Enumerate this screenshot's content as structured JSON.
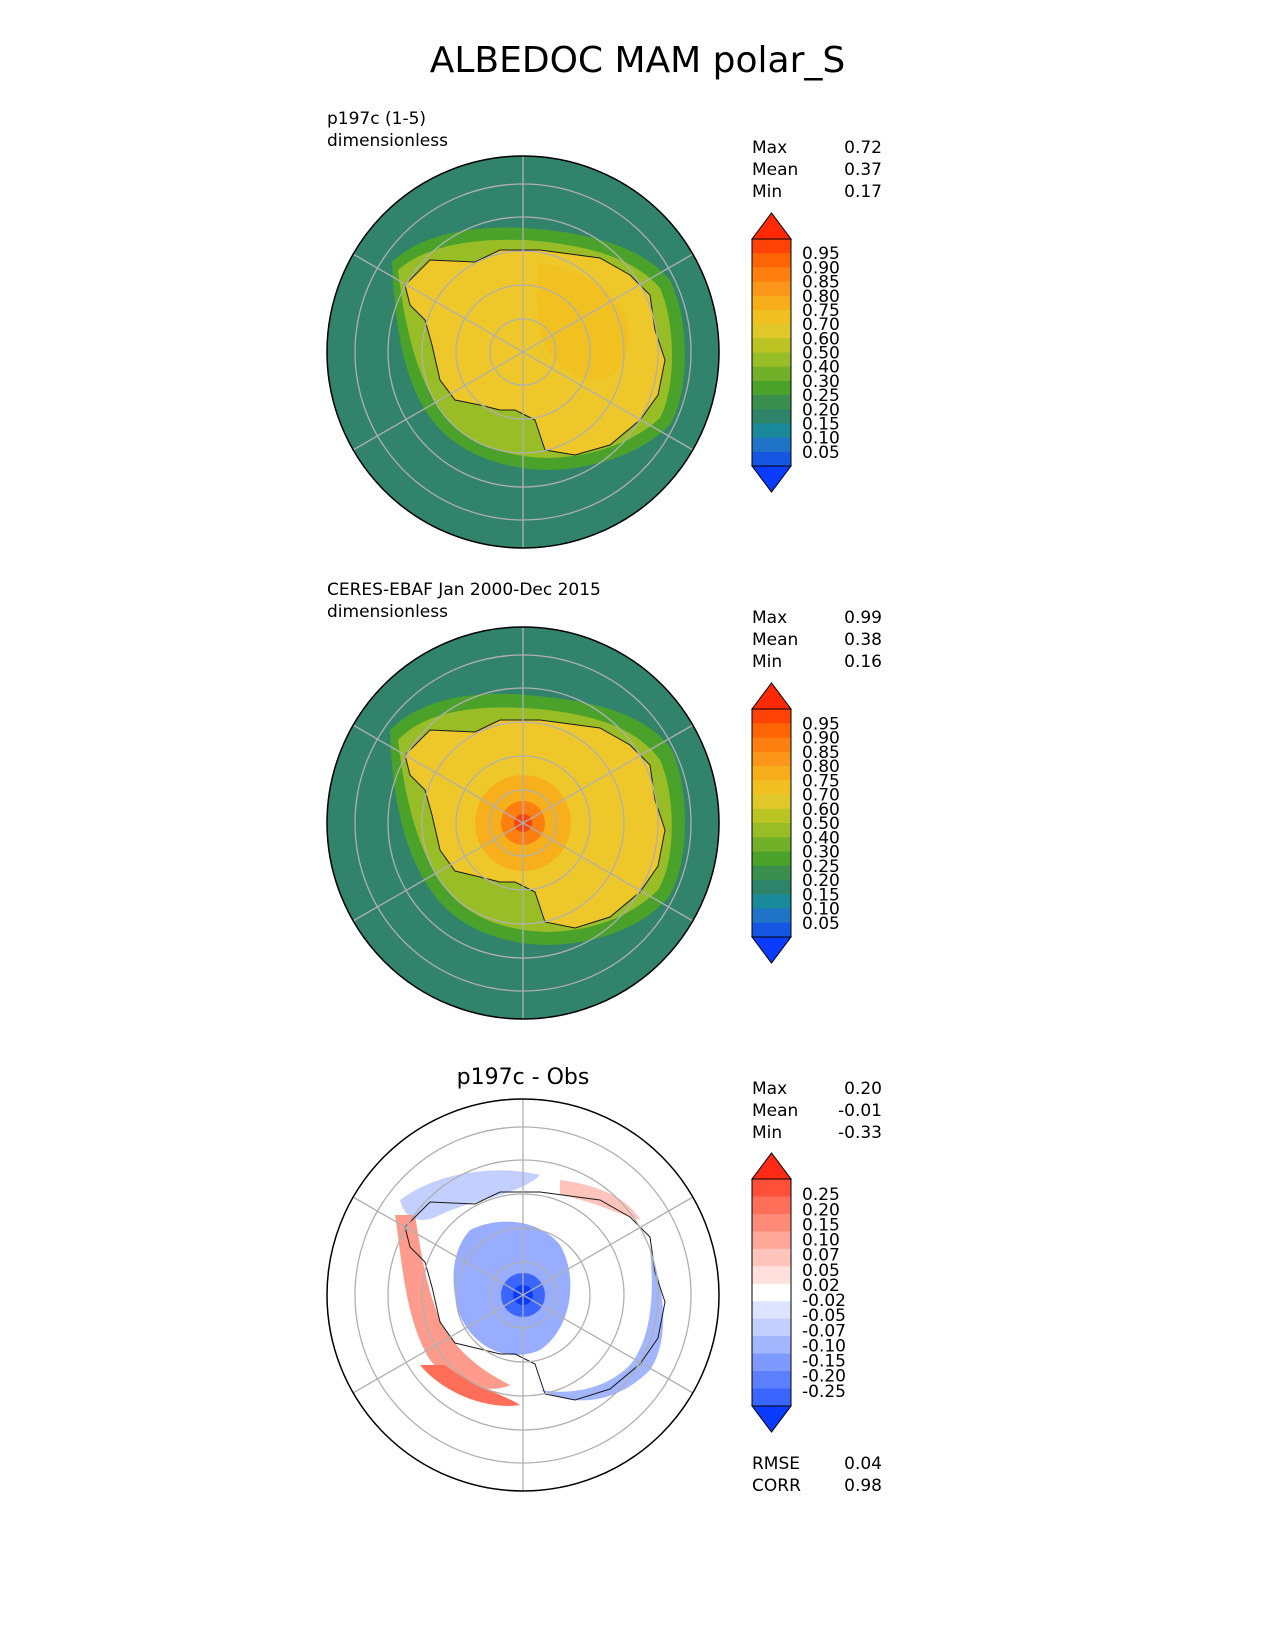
{
  "title": "ALBEDOC MAM polar_S",
  "colors": {
    "ocean": "#32836c",
    "ice": "#eec82a",
    "contour": "#1a1a1a",
    "grid": "#b0b0b0",
    "colorbar_seq": [
      "#0a3bff",
      "#1557e3",
      "#1f74c6",
      "#1a8a9a",
      "#2e8468",
      "#3b8f4e",
      "#4aa22a",
      "#72b02a",
      "#98bd26",
      "#bcc424",
      "#e0c82a",
      "#f0bf20",
      "#f7ad1a",
      "#fb961a",
      "#ff7e10",
      "#ff6404",
      "#ff4205",
      "#ff2a05"
    ],
    "colorbar_div": [
      "#0a3bff",
      "#3b65ff",
      "#5b7fff",
      "#7e99ff",
      "#a2b5ff",
      "#c2cfff",
      "#dde4ff",
      "#ffffff",
      "#ffe0dc",
      "#ffc4bc",
      "#ffa798",
      "#ff8a78",
      "#ff6e58",
      "#ff4f38",
      "#ff2a15"
    ]
  },
  "panels": [
    {
      "id": "model",
      "title": "",
      "subtitle_line1": "p197c (1-5)",
      "subtitle_line2": "dimensionless",
      "stats": [
        {
          "label": "Max",
          "value": "0.72"
        },
        {
          "label": "Mean",
          "value": "0.37"
        },
        {
          "label": "Min",
          "value": "0.17"
        }
      ],
      "colorbar_ticks": [
        "0.95",
        "0.90",
        "0.85",
        "0.80",
        "0.75",
        "0.70",
        "0.60",
        "0.50",
        "0.40",
        "0.30",
        "0.25",
        "0.20",
        "0.15",
        "0.10",
        "0.05"
      ]
    },
    {
      "id": "obs",
      "title": "",
      "subtitle_line1": "CERES-EBAF Jan 2000-Dec 2015",
      "subtitle_line2": "dimensionless",
      "stats": [
        {
          "label": "Max",
          "value": "0.99"
        },
        {
          "label": "Mean",
          "value": "0.38"
        },
        {
          "label": "Min",
          "value": "0.16"
        }
      ],
      "colorbar_ticks": [
        "0.95",
        "0.90",
        "0.85",
        "0.80",
        "0.75",
        "0.70",
        "0.60",
        "0.50",
        "0.40",
        "0.30",
        "0.25",
        "0.20",
        "0.15",
        "0.10",
        "0.05"
      ]
    },
    {
      "id": "diff",
      "title": "p197c - Obs",
      "subtitle_line1": "",
      "subtitle_line2": "",
      "stats": [
        {
          "label": "Max",
          "value": "0.20"
        },
        {
          "label": "Mean",
          "value": "-0.01"
        },
        {
          "label": "Min",
          "value": "-0.33"
        }
      ],
      "colorbar_ticks": [
        "0.25",
        "0.20",
        "0.15",
        "0.10",
        "0.07",
        "0.05",
        "0.02",
        "-0.02",
        "-0.05",
        "-0.07",
        "-0.10",
        "-0.15",
        "-0.20",
        "-0.25"
      ],
      "metrics": [
        {
          "label": "RMSE",
          "value": "0.04"
        },
        {
          "label": "CORR",
          "value": "0.98"
        }
      ]
    }
  ],
  "chart_data": [
    {
      "type": "heatmap",
      "projection": "south polar stereographic",
      "title": "p197c (1-5)",
      "units": "dimensionless",
      "stats": {
        "max": 0.72,
        "mean": 0.37,
        "min": 0.17
      },
      "colorbar_levels": [
        0.05,
        0.1,
        0.15,
        0.2,
        0.25,
        0.3,
        0.4,
        0.5,
        0.6,
        0.7,
        0.75,
        0.8,
        0.85,
        0.9,
        0.95
      ],
      "colorbar_extend": "both",
      "field_summary": {
        "open_ocean": 0.17,
        "sea_ice_margin": [
          0.25,
          0.5
        ],
        "antarctic_interior": [
          0.6,
          0.72
        ]
      }
    },
    {
      "type": "heatmap",
      "projection": "south polar stereographic",
      "title": "CERES-EBAF Jan 2000-Dec 2015",
      "units": "dimensionless",
      "stats": {
        "max": 0.99,
        "mean": 0.38,
        "min": 0.16
      },
      "colorbar_levels": [
        0.05,
        0.1,
        0.15,
        0.2,
        0.25,
        0.3,
        0.4,
        0.5,
        0.6,
        0.7,
        0.75,
        0.8,
        0.85,
        0.9,
        0.95
      ],
      "colorbar_extend": "both",
      "field_summary": {
        "open_ocean": 0.16,
        "sea_ice_margin": [
          0.25,
          0.5
        ],
        "antarctic_interior": [
          0.6,
          0.8
        ],
        "pole": 0.99
      }
    },
    {
      "type": "heatmap",
      "projection": "south polar stereographic",
      "title": "p197c - Obs",
      "units": "dimensionless",
      "stats": {
        "max": 0.2,
        "mean": -0.01,
        "min": -0.33,
        "rmse": 0.04,
        "corr": 0.98
      },
      "colorbar_levels": [
        -0.25,
        -0.2,
        -0.15,
        -0.1,
        -0.07,
        -0.05,
        -0.02,
        0.02,
        0.05,
        0.07,
        0.1,
        0.15,
        0.2,
        0.25
      ],
      "colorbar_extend": "both",
      "field_summary": {
        "pole": -0.33,
        "peninsula_west": 0.15,
        "ice_margin_pacific": -0.1
      }
    }
  ]
}
